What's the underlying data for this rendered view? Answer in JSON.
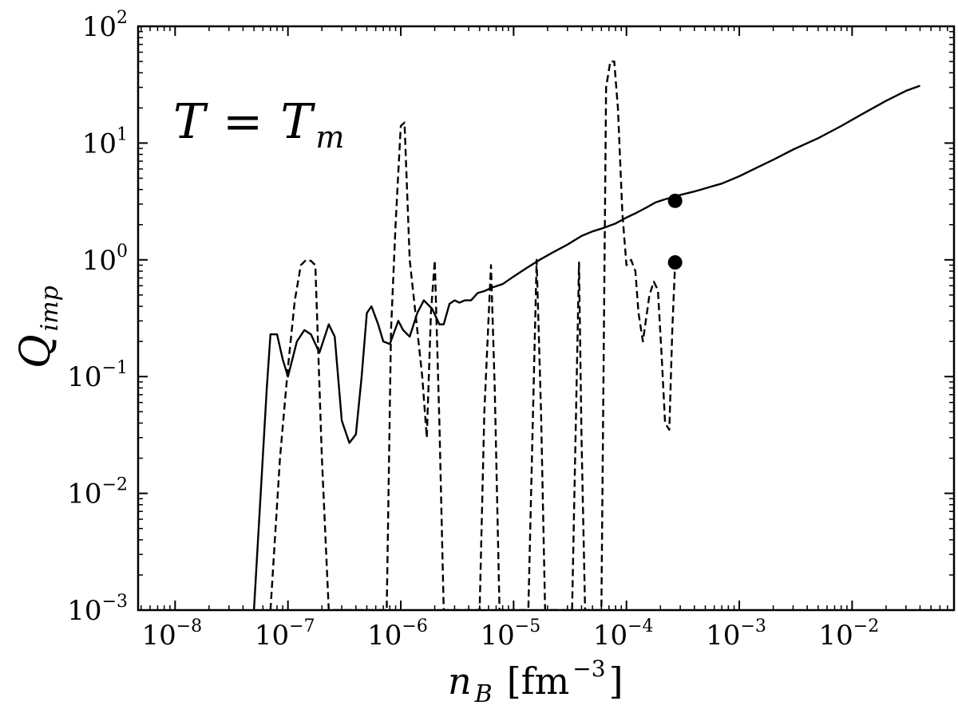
{
  "chart_data": {
    "type": "line",
    "xscale": "log",
    "yscale": "log",
    "xlim": [
      4.7e-09,
      0.08
    ],
    "ylim": [
      0.001,
      100
    ],
    "x_ticks": [
      {
        "base": "10",
        "exp": "−8",
        "value": 1e-08
      },
      {
        "base": "10",
        "exp": "−7",
        "value": 1e-07
      },
      {
        "base": "10",
        "exp": "−6",
        "value": 1e-06
      },
      {
        "base": "10",
        "exp": "−5",
        "value": 1e-05
      },
      {
        "base": "10",
        "exp": "−4",
        "value": 0.0001
      },
      {
        "base": "10",
        "exp": "−3",
        "value": 0.001
      },
      {
        "base": "10",
        "exp": "−2",
        "value": 0.01
      }
    ],
    "y_ticks": [
      {
        "base": "10",
        "exp": "−3",
        "value": 0.001
      },
      {
        "base": "10",
        "exp": "−2",
        "value": 0.01
      },
      {
        "base": "10",
        "exp": "−1",
        "value": 0.1
      },
      {
        "base": "10",
        "exp": "0",
        "value": 1
      },
      {
        "base": "10",
        "exp": "1",
        "value": 10
      },
      {
        "base": "10",
        "exp": "2",
        "value": 100
      }
    ],
    "xlabel": {
      "main": "n",
      "sub": "B",
      "unit_open": "[fm",
      "unit_exp": "−3",
      "unit_close": "]"
    },
    "ylabel": {
      "main": "Q",
      "sub": "imp"
    },
    "annotation": {
      "lhs": "T",
      "eq": "=",
      "rhs": "T",
      "rhs_sub": "m"
    },
    "grid": false,
    "series": [
      {
        "style": "solid",
        "x": [
          5e-08,
          6.5e-08,
          7e-08,
          8e-08,
          9e-08,
          1e-07,
          1.2e-07,
          1.4e-07,
          1.6e-07,
          1.9e-07,
          2.3e-07,
          2.6e-07,
          3e-07,
          3.5e-07,
          4e-07,
          4.5e-07,
          5e-07,
          5.5e-07,
          6.3e-07,
          7e-07,
          8e-07,
          9.5e-07,
          1.05e-06,
          1.2e-06,
          1.4e-06,
          1.6e-06,
          1.9e-06,
          2.2e-06,
          2.4e-06,
          2.7e-06,
          3e-06,
          3.3e-06,
          3.7e-06,
          4.2e-06,
          4.8e-06,
          5.5e-06,
          6.5e-06,
          8e-06,
          1e-05,
          1.3e-05,
          1.7e-05,
          2.2e-05,
          3e-05,
          4e-05,
          5e-05,
          6e-05,
          7e-05,
          8e-05,
          0.0001,
          0.00012,
          0.00015,
          0.00018,
          0.00022,
          0.00026,
          0.0003,
          0.0004,
          0.0005,
          0.0007,
          0.001,
          0.0015,
          0.002,
          0.003,
          0.005,
          0.008,
          0.012,
          0.02,
          0.03,
          0.04
        ],
        "y": [
          0.001,
          0.08,
          0.23,
          0.23,
          0.14,
          0.1,
          0.2,
          0.25,
          0.23,
          0.16,
          0.28,
          0.22,
          0.042,
          0.027,
          0.032,
          0.1,
          0.35,
          0.4,
          0.28,
          0.2,
          0.19,
          0.3,
          0.25,
          0.22,
          0.35,
          0.45,
          0.38,
          0.28,
          0.28,
          0.42,
          0.45,
          0.43,
          0.45,
          0.45,
          0.52,
          0.54,
          0.58,
          0.62,
          0.72,
          0.85,
          1.0,
          1.15,
          1.35,
          1.6,
          1.75,
          1.85,
          1.95,
          2.05,
          2.3,
          2.5,
          2.8,
          3.1,
          3.3,
          3.45,
          3.6,
          3.85,
          4.1,
          4.5,
          5.2,
          6.3,
          7.2,
          8.8,
          11.0,
          14.0,
          17.5,
          23.0,
          28.0,
          31.0
        ],
        "marker": {
          "x": 0.00027,
          "y": 3.2
        }
      },
      {
        "style": "dashed",
        "x": [
          7e-08,
          8.5e-08,
          1e-07,
          1.15e-07,
          1.3e-07,
          1.45e-07,
          1.6e-07,
          1.75e-07,
          2e-07,
          2.3e-07,
          7.5e-07,
          8.2e-07,
          9e-07,
          1e-06,
          1.08e-06,
          1.2e-06,
          1.4e-06,
          1.55e-06,
          1.7e-06,
          1.85e-06,
          2e-06,
          2.2e-06,
          2.4e-06,
          5e-06,
          5.5e-06,
          6.3e-06,
          6.8e-06,
          7.5e-06,
          8.3e-06,
          1.35e-05,
          1.6e-05,
          1.75e-05,
          1.9e-05,
          2.1e-05,
          3.3e-05,
          3.8e-05,
          4e-05,
          4.3e-05,
          4.8e-05,
          6e-05,
          6.6e-05,
          7.2e-05,
          7.8e-05,
          8.4e-05,
          9.2e-05,
          0.0001,
          0.00011,
          0.00012,
          0.000128,
          0.00014,
          0.00016,
          0.000175,
          0.00019,
          0.000205,
          0.00022,
          0.00024,
          0.000255,
          0.00027
        ],
        "y": [
          0.001,
          0.02,
          0.12,
          0.45,
          0.9,
          1.0,
          0.98,
          0.9,
          0.02,
          0.001,
          0.001,
          0.25,
          2.0,
          14.0,
          15.0,
          1.0,
          0.25,
          0.1,
          0.03,
          0.35,
          0.99,
          0.04,
          0.001,
          0.001,
          0.05,
          0.9,
          0.08,
          0.001,
          0.001,
          0.001,
          1.0,
          0.05,
          0.001,
          0.001,
          0.001,
          0.95,
          0.03,
          0.001,
          0.001,
          0.001,
          30.0,
          50.0,
          50.0,
          20.0,
          2.5,
          0.9,
          1.0,
          0.8,
          0.35,
          0.2,
          0.5,
          0.65,
          0.55,
          0.15,
          0.04,
          0.035,
          0.25,
          0.95
        ],
        "marker": {
          "x": 0.00027,
          "y": 0.95
        }
      }
    ]
  }
}
